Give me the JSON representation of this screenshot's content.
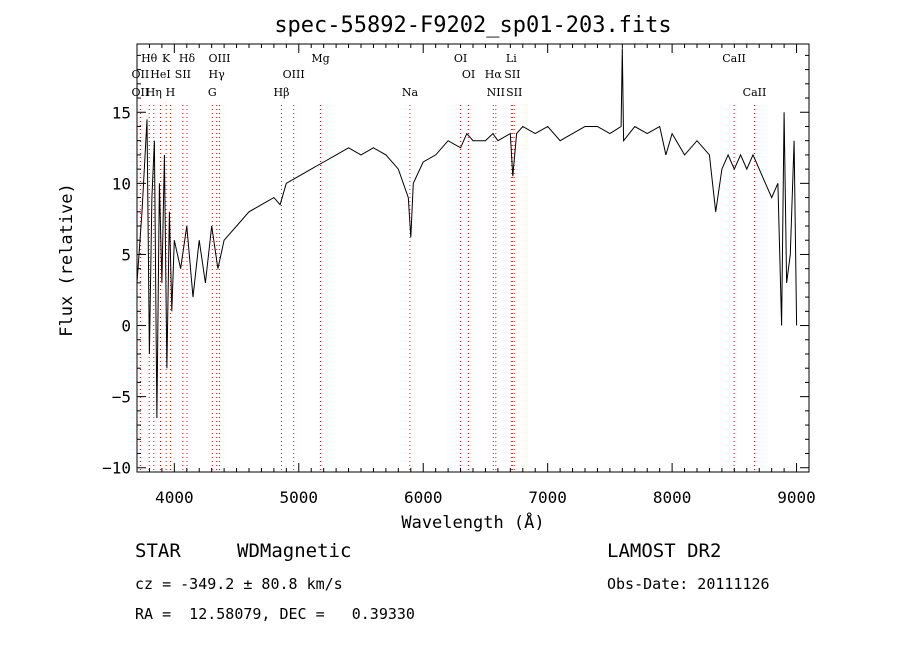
{
  "chart_data": {
    "type": "line",
    "title": "spec-55892-F9202_sp01-203.fits",
    "xlabel": "Wavelength (Å)",
    "ylabel": "Flux (relative)",
    "xlim": [
      3700,
      9100
    ],
    "ylim": [
      -10.3,
      19.8
    ],
    "xticks": [
      4000,
      5000,
      6000,
      7000,
      8000,
      9000
    ],
    "yticks": [
      -10,
      -5,
      0,
      5,
      10,
      15
    ],
    "grid": false,
    "series_color": "#000000",
    "marker_color": "#ff0000",
    "series": [
      {
        "x": [
          3700,
          3740,
          3780,
          3800,
          3820,
          3840,
          3860,
          3880,
          3900,
          3920,
          3940,
          3960,
          3980,
          4000,
          4050,
          4100,
          4150,
          4200,
          4250,
          4300,
          4350,
          4400,
          4500,
          4600,
          4700,
          4800,
          4850,
          4900,
          5000,
          5100,
          5200,
          5300,
          5400,
          5500,
          5600,
          5700,
          5800,
          5880,
          5900,
          5920,
          6000,
          6100,
          6200,
          6300,
          6350,
          6400,
          6500,
          6560,
          6600,
          6700,
          6720,
          6750,
          6800,
          6900,
          7000,
          7100,
          7200,
          7300,
          7400,
          7500,
          7590,
          7600,
          7610,
          7700,
          7800,
          7900,
          7950,
          8000,
          8100,
          8200,
          8300,
          8350,
          8400,
          8450,
          8500,
          8550,
          8600,
          8650,
          8700,
          8750,
          8800,
          8850,
          8880,
          8900,
          8920,
          8950,
          8980,
          9000
        ],
        "y": [
          3,
          8,
          14.5,
          -2,
          9,
          13,
          -6.5,
          10,
          3,
          12,
          -3,
          8,
          1,
          6,
          4,
          7,
          2,
          6,
          3,
          7,
          4,
          6,
          7,
          8,
          8.5,
          9,
          8.5,
          10,
          10.5,
          11,
          11.5,
          12,
          12.5,
          12,
          12.5,
          12,
          11,
          9,
          6.2,
          10,
          11.5,
          12,
          13,
          12.5,
          13.5,
          13,
          13,
          13.5,
          13,
          13.5,
          10.5,
          13.5,
          14,
          13.5,
          14,
          13,
          13.5,
          14,
          14,
          13.5,
          14,
          19.5,
          13,
          14,
          13.5,
          14,
          12,
          13.5,
          12,
          13,
          12,
          8,
          11,
          12,
          11,
          12,
          11,
          12,
          11,
          10,
          9,
          10,
          0,
          15,
          3,
          5,
          13,
          0
        ]
      }
    ],
    "spectral_lines": [
      {
        "label": "Hθ",
        "x": 3798,
        "row": 0,
        "wavelength_marker": true
      },
      {
        "label": "K",
        "x": 3934,
        "row": 0,
        "wavelength_marker": true
      },
      {
        "label": "Hδ",
        "x": 4102,
        "row": 0,
        "wavelength_marker": true
      },
      {
        "label": "OIII",
        "x": 4363,
        "row": 0,
        "wavelength_marker": true
      },
      {
        "label": "Mg",
        "x": 5175,
        "row": 0,
        "wavelength_marker": true
      },
      {
        "label": "OI",
        "x": 6300,
        "row": 0,
        "wavelength_marker": true
      },
      {
        "label": "Li",
        "x": 6708,
        "row": 0,
        "wavelength_marker": true
      },
      {
        "label": "CaII",
        "x": 8498,
        "row": 0,
        "wavelength_marker": true
      },
      {
        "label": "OII",
        "x": 3727,
        "row": 1,
        "wavelength_marker": true
      },
      {
        "label": "HeI",
        "x": 3889,
        "row": 1,
        "wavelength_marker": true
      },
      {
        "label": "SII",
        "x": 4069,
        "row": 1,
        "wavelength_marker": true
      },
      {
        "label": "Hγ",
        "x": 4340,
        "row": 1,
        "wavelength_marker": true
      },
      {
        "label": "OIII",
        "x": 4959,
        "row": 1,
        "wavelength_marker": true
      },
      {
        "label": "OI",
        "x": 6364,
        "row": 1,
        "wavelength_marker": true
      },
      {
        "label": "Hα",
        "x": 6563,
        "row": 1,
        "wavelength_marker": true
      },
      {
        "label": "SII",
        "x": 6716,
        "row": 1,
        "wavelength_marker": true
      },
      {
        "label": "OII",
        "x": 3727,
        "row": 2,
        "wavelength_marker": false
      },
      {
        "label": "Hη",
        "x": 3835,
        "row": 2,
        "wavelength_marker": true
      },
      {
        "label": "H",
        "x": 3969,
        "row": 2,
        "wavelength_marker": true
      },
      {
        "label": "G",
        "x": 4305,
        "row": 2,
        "wavelength_marker": true
      },
      {
        "label": "Hβ",
        "x": 4861,
        "row": 2,
        "wavelength_marker": true
      },
      {
        "label": "Na",
        "x": 5893,
        "row": 2,
        "wavelength_marker": true
      },
      {
        "label": "NII",
        "x": 6583,
        "row": 2,
        "wavelength_marker": true
      },
      {
        "label": "SII",
        "x": 6731,
        "row": 2,
        "wavelength_marker": true
      },
      {
        "label": "CaII",
        "x": 8662,
        "row": 2,
        "wavelength_marker": true
      }
    ]
  },
  "info": {
    "object_class": "STAR",
    "subclass": "WDMagnetic",
    "survey": "LAMOST DR2",
    "redshift_line": "cz = -349.2 ± 80.8 km/s",
    "obs_date_line": "Obs-Date: 20111126",
    "coords_line": "RA =  12.58079, DEC =   0.39330"
  }
}
